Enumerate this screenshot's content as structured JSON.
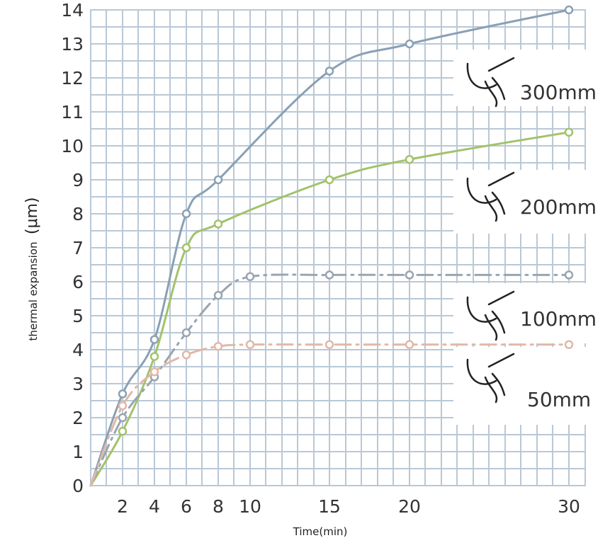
{
  "chart_data": {
    "type": "line",
    "xlabel": "Time(min)",
    "ylabel": "thermal expansion",
    "ylabel_unit": "(μm)",
    "x_ticks": [
      2,
      4,
      6,
      8,
      10,
      15,
      20,
      30
    ],
    "y_ticks": [
      0,
      1,
      2,
      3,
      4,
      5,
      6,
      7,
      8,
      9,
      10,
      11,
      12,
      13,
      14
    ],
    "ylim": [
      0,
      14
    ],
    "grid": true,
    "series": [
      {
        "name": "300mm",
        "color": "#8aa0b4",
        "style": "solid",
        "icon": "micrometer-in-hand-icon",
        "points": [
          [
            0,
            0
          ],
          [
            2,
            2.7
          ],
          [
            4,
            4.3
          ],
          [
            6,
            8.0
          ],
          [
            8,
            9.0
          ],
          [
            15,
            12.2
          ],
          [
            20,
            13.0
          ],
          [
            30,
            14.0
          ]
        ]
      },
      {
        "name": "200mm",
        "color": "#a3c26a",
        "style": "solid",
        "icon": "micrometer-in-hand-icon",
        "points": [
          [
            0,
            0
          ],
          [
            2,
            1.6
          ],
          [
            4,
            3.8
          ],
          [
            6,
            7.0
          ],
          [
            8,
            7.7
          ],
          [
            15,
            9.0
          ],
          [
            20,
            9.6
          ],
          [
            30,
            10.4
          ]
        ]
      },
      {
        "name": "100mm",
        "color": "#9aa5b0",
        "style": "dash-dot",
        "icon": "micrometer-in-hand-icon",
        "points": [
          [
            0,
            0
          ],
          [
            2,
            2.0
          ],
          [
            4,
            3.2
          ],
          [
            6,
            4.5
          ],
          [
            8,
            5.6
          ],
          [
            10,
            6.15
          ],
          [
            15,
            6.2
          ],
          [
            20,
            6.2
          ],
          [
            30,
            6.2
          ]
        ]
      },
      {
        "name": "50mm",
        "color": "#e0b8a8",
        "style": "dash-dot",
        "icon": "micrometer-in-hand-icon",
        "points": [
          [
            0,
            0
          ],
          [
            2,
            2.35
          ],
          [
            4,
            3.35
          ],
          [
            6,
            3.85
          ],
          [
            8,
            4.1
          ],
          [
            10,
            4.15
          ],
          [
            15,
            4.15
          ],
          [
            20,
            4.15
          ],
          [
            30,
            4.15
          ]
        ]
      }
    ]
  }
}
